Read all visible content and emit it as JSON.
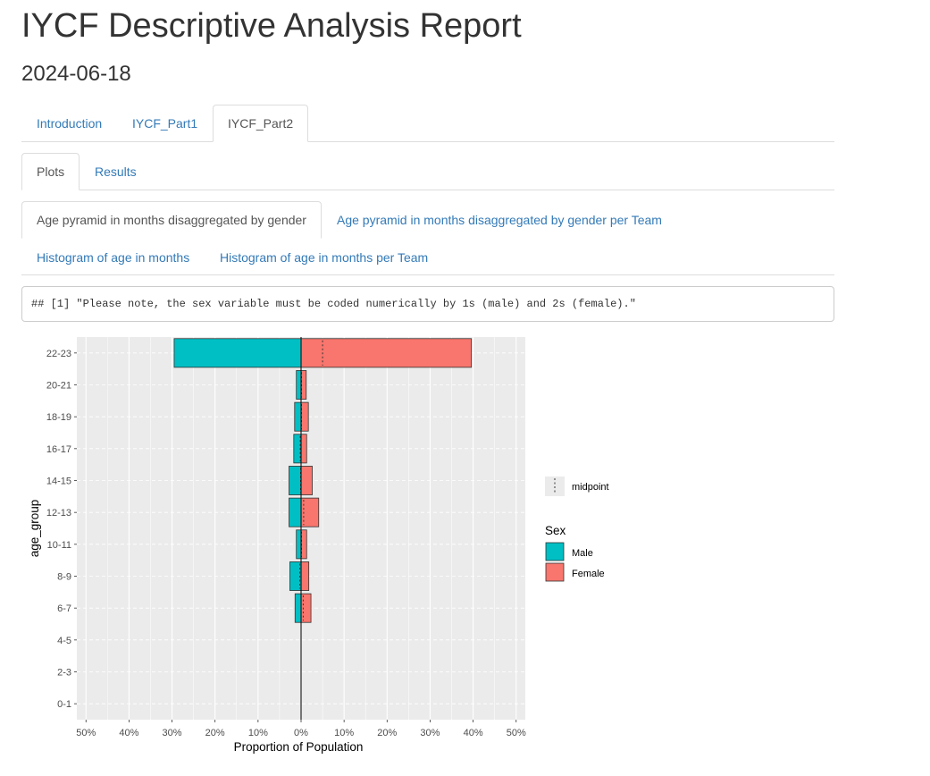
{
  "report": {
    "title": "IYCF Descriptive Analysis Report",
    "date": "2024-06-18"
  },
  "tabs_level1": [
    {
      "label": "Introduction",
      "active": false
    },
    {
      "label": "IYCF_Part1",
      "active": false
    },
    {
      "label": "IYCF_Part2",
      "active": true
    }
  ],
  "tabs_level2": [
    {
      "label": "Plots",
      "active": true
    },
    {
      "label": "Results",
      "active": false
    }
  ],
  "tabs_level3": [
    {
      "label": "Age pyramid in months disaggregated by gender",
      "active": true
    },
    {
      "label": "Age pyramid in months disaggregated by gender per Team",
      "active": false
    },
    {
      "label": "Histogram of age in months",
      "active": false
    },
    {
      "label": "Histogram of age in months per Team",
      "active": false
    }
  ],
  "code_output": "## [1] \"Please note, the sex variable must be coded numerically by 1s (male) and 2s (female).\"",
  "chart_data": {
    "type": "bar",
    "orientation": "horizontal-pyramid",
    "xlabel": "Proportion of Population",
    "ylabel": "age_group",
    "xlim": [
      -50,
      50
    ],
    "x_ticks": [
      -50,
      -40,
      -30,
      -20,
      -10,
      0,
      10,
      20,
      30,
      40,
      50
    ],
    "x_tick_labels": [
      "50%",
      "40%",
      "30%",
      "20%",
      "10%",
      "0%",
      "10%",
      "20%",
      "30%",
      "40%",
      "50%"
    ],
    "categories": [
      "0-1",
      "2-3",
      "4-5",
      "6-7",
      "8-9",
      "10-11",
      "12-13",
      "14-15",
      "16-17",
      "18-19",
      "20-21",
      "22-23"
    ],
    "series": [
      {
        "name": "Male",
        "color": "#00BFC4",
        "values": [
          0,
          0,
          0,
          1.4,
          2.6,
          1.1,
          2.8,
          2.8,
          1.7,
          1.5,
          1.1,
          29.5
        ]
      },
      {
        "name": "Female",
        "color": "#F8766D",
        "values": [
          0,
          0,
          0,
          2.3,
          1.8,
          1.3,
          4.1,
          2.6,
          1.3,
          1.7,
          1.2,
          39.6
        ]
      }
    ],
    "midpoints": [
      null,
      null,
      null,
      0.5,
      -0.3,
      0.1,
      0.6,
      -0.1,
      -0.2,
      0.1,
      0.1,
      5.0
    ],
    "legend_title": "Sex",
    "midpoint_label": "midpoint",
    "legend_position": "right",
    "grid": true,
    "panel_background": "#EBEBEB"
  }
}
